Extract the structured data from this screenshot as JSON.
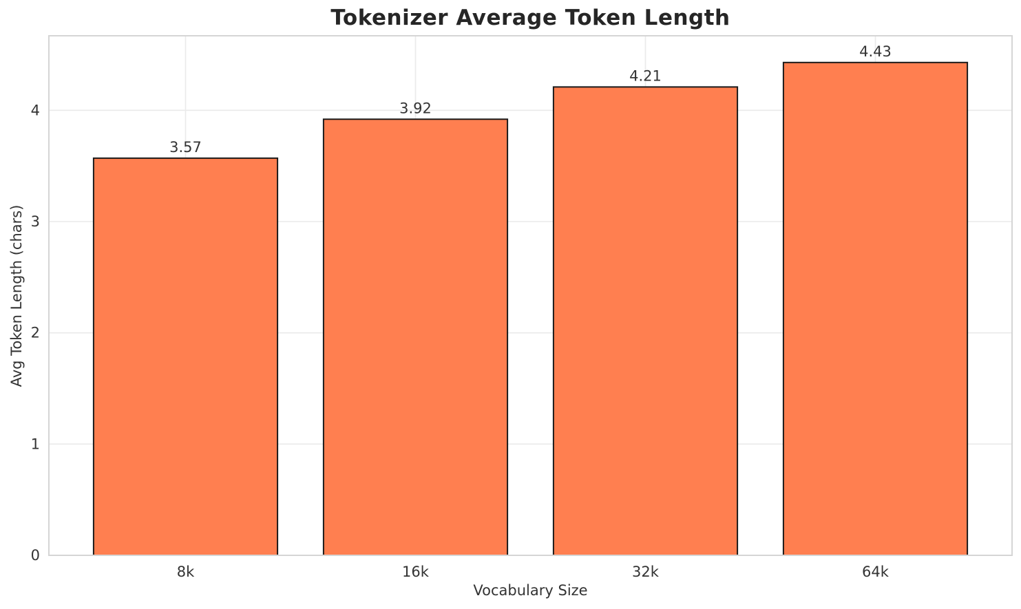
{
  "chart_data": {
    "type": "bar",
    "title": "Tokenizer Average Token Length",
    "xlabel": "Vocabulary Size",
    "ylabel": "Avg Token Length (chars)",
    "categories": [
      "8k",
      "16k",
      "32k",
      "64k"
    ],
    "values": [
      3.57,
      3.92,
      4.21,
      4.43
    ],
    "value_labels": [
      "3.57",
      "3.92",
      "4.21",
      "4.43"
    ],
    "yticks": [
      "0",
      "1",
      "2",
      "3",
      "4"
    ],
    "ylim": [
      0,
      4.67
    ],
    "grid": "on",
    "legend": "none",
    "bar_color": "#FF7F50",
    "bar_edge_color": "#1a1a1a",
    "grid_color": "#eaeaea",
    "spine_color": "#d5d5d5",
    "tick_text_color": "#333333",
    "value_text_color": "#3a3a3a",
    "background_color": "#ffffff"
  }
}
